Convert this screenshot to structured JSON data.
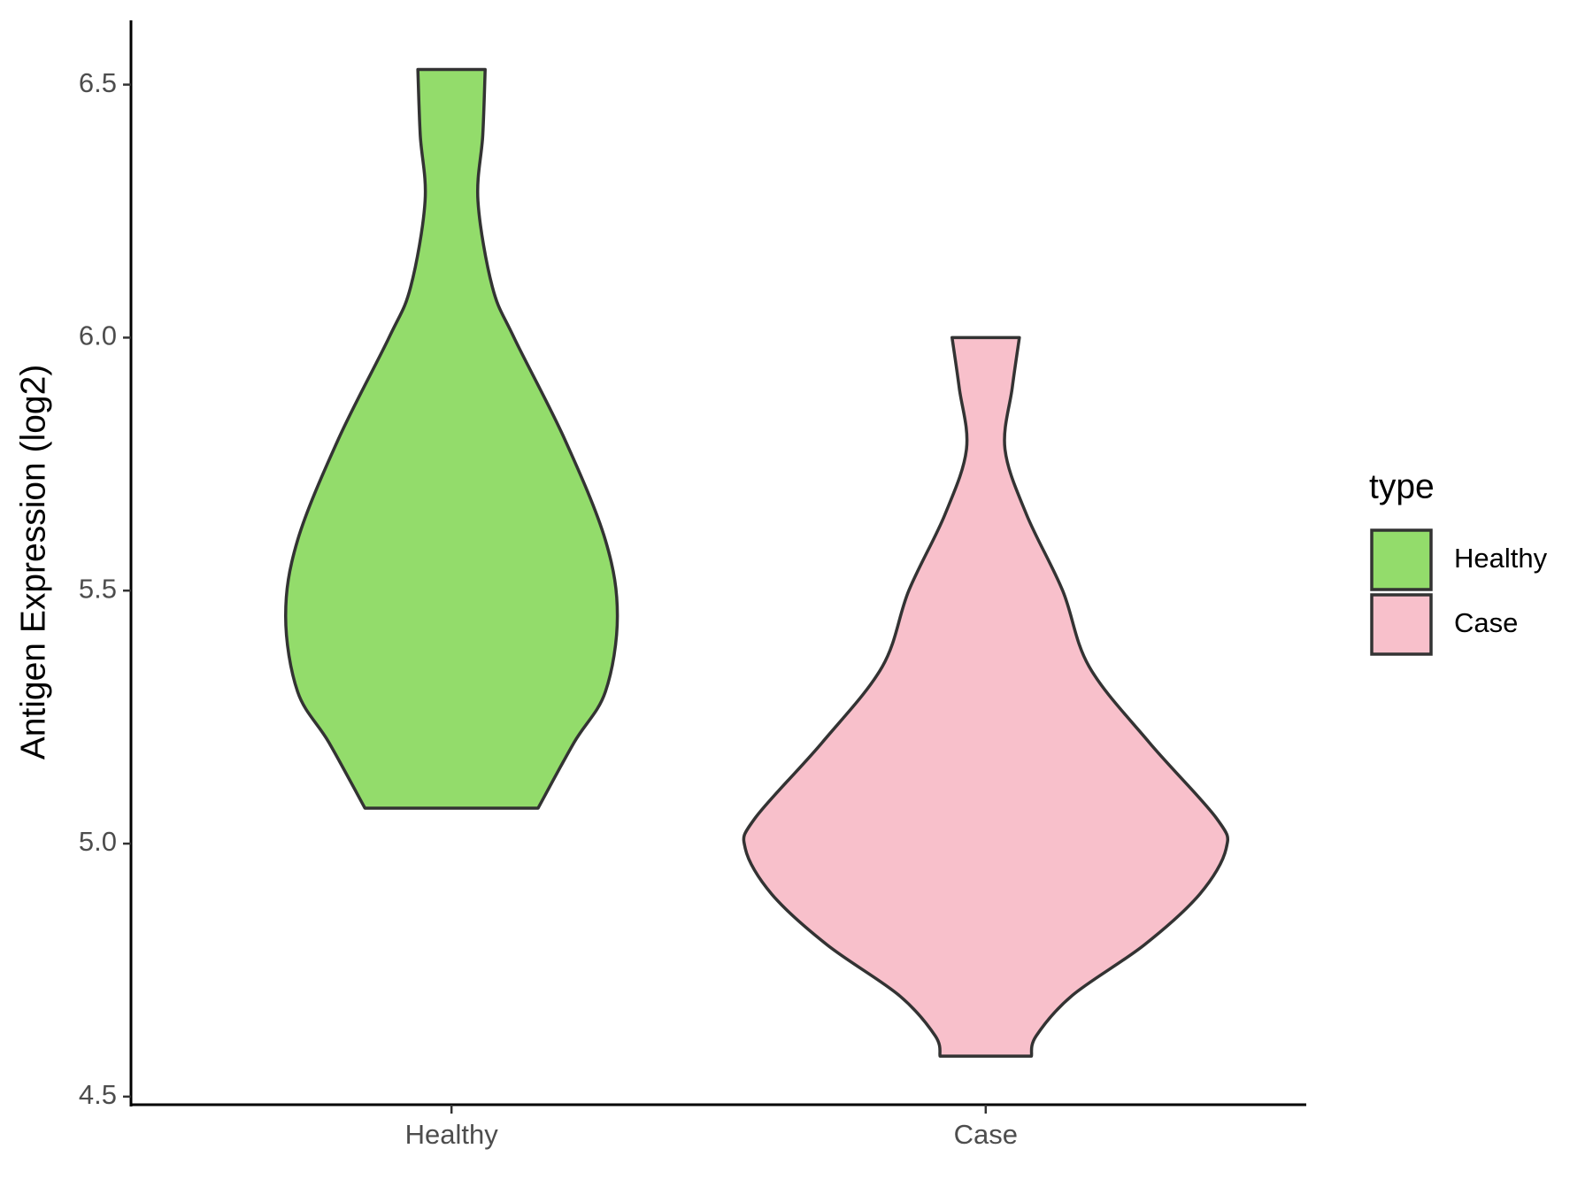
{
  "chart_data": {
    "type": "violin",
    "categories": [
      "Healthy",
      "Case"
    ],
    "y_label": "Antigen Expression (log2)",
    "legend_title": "type",
    "legend_position": "right",
    "ylim": [
      4.484,
      6.627
    ],
    "yticks": [
      {
        "value": 4.5,
        "label": "4.5"
      },
      {
        "value": 5,
        "label": "5.0"
      },
      {
        "value": 5.5,
        "label": "5.5"
      },
      {
        "value": 6,
        "label": "6.0"
      },
      {
        "value": 6.5,
        "label": "6.5"
      }
    ],
    "series": [
      {
        "name": "Healthy",
        "color": "#93dc6b",
        "y": [
          6.53,
          6.4,
          6.27,
          6.1,
          6.0,
          5.8,
          5.6,
          5.45,
          5.3,
          5.2,
          5.07
        ],
        "width": [
          0.14,
          0.13,
          0.11,
          0.17,
          0.26,
          0.47,
          0.64,
          0.69,
          0.64,
          0.51,
          0.36
        ]
      },
      {
        "name": "Case",
        "color": "#f8c0cb",
        "y": [
          6.0,
          5.9,
          5.78,
          5.65,
          5.5,
          5.35,
          5.2,
          5.05,
          4.99,
          4.9,
          4.8,
          4.7,
          4.62,
          4.58
        ],
        "width": [
          0.14,
          0.11,
          0.08,
          0.17,
          0.32,
          0.43,
          0.68,
          0.96,
          1.0,
          0.89,
          0.66,
          0.36,
          0.21,
          0.19
        ]
      }
    ]
  }
}
